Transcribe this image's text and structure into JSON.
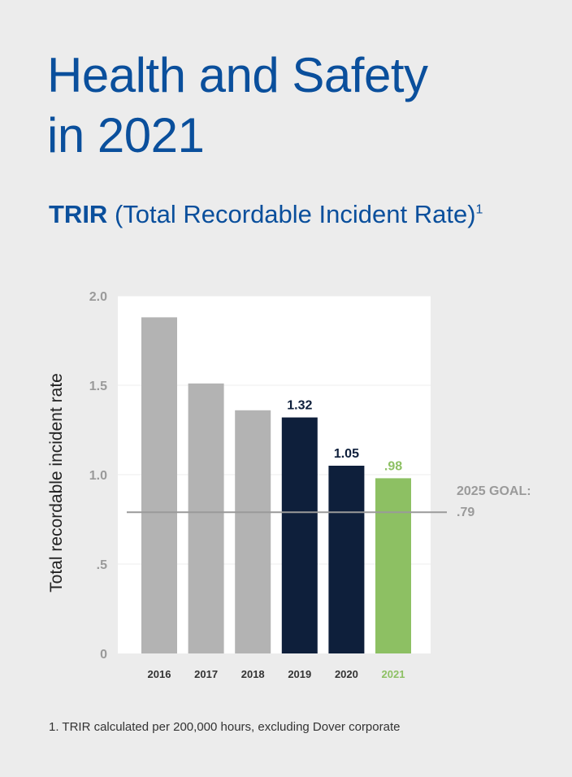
{
  "header": {
    "title_line1": "Health and Safety",
    "title_line2": "in 2021",
    "subtitle_bold": "TRIR",
    "subtitle_rest": "(Total Recordable Incident Rate)",
    "subtitle_sup": "1"
  },
  "footnote": "1. TRIR calculated per 200,000 hours, excluding Dover corporate",
  "chart_data": {
    "type": "bar",
    "categories": [
      "2016",
      "2017",
      "2018",
      "2019",
      "2020",
      "2021"
    ],
    "values": [
      1.88,
      1.51,
      1.36,
      1.32,
      1.05,
      0.98
    ],
    "data_labels": [
      "",
      "",
      "",
      "1.32",
      "1.05",
      ".98"
    ],
    "ylabel": "Total recordable incident rate",
    "ylim": [
      0,
      2.0
    ],
    "yticks": [
      0,
      0.5,
      1.0,
      1.5,
      2.0
    ],
    "ytick_labels": [
      "0",
      ".5",
      "1.0",
      "1.5",
      "2.0"
    ],
    "grid": true,
    "bar_colors": [
      "#b3b3b3",
      "#b3b3b3",
      "#b3b3b3",
      "#0e1f3b",
      "#0e1f3b",
      "#8dc063"
    ],
    "goal": {
      "value": 0.79,
      "label_line1": "2025 GOAL:",
      "label_line2": ".79",
      "color": "#9a9a9a"
    }
  }
}
